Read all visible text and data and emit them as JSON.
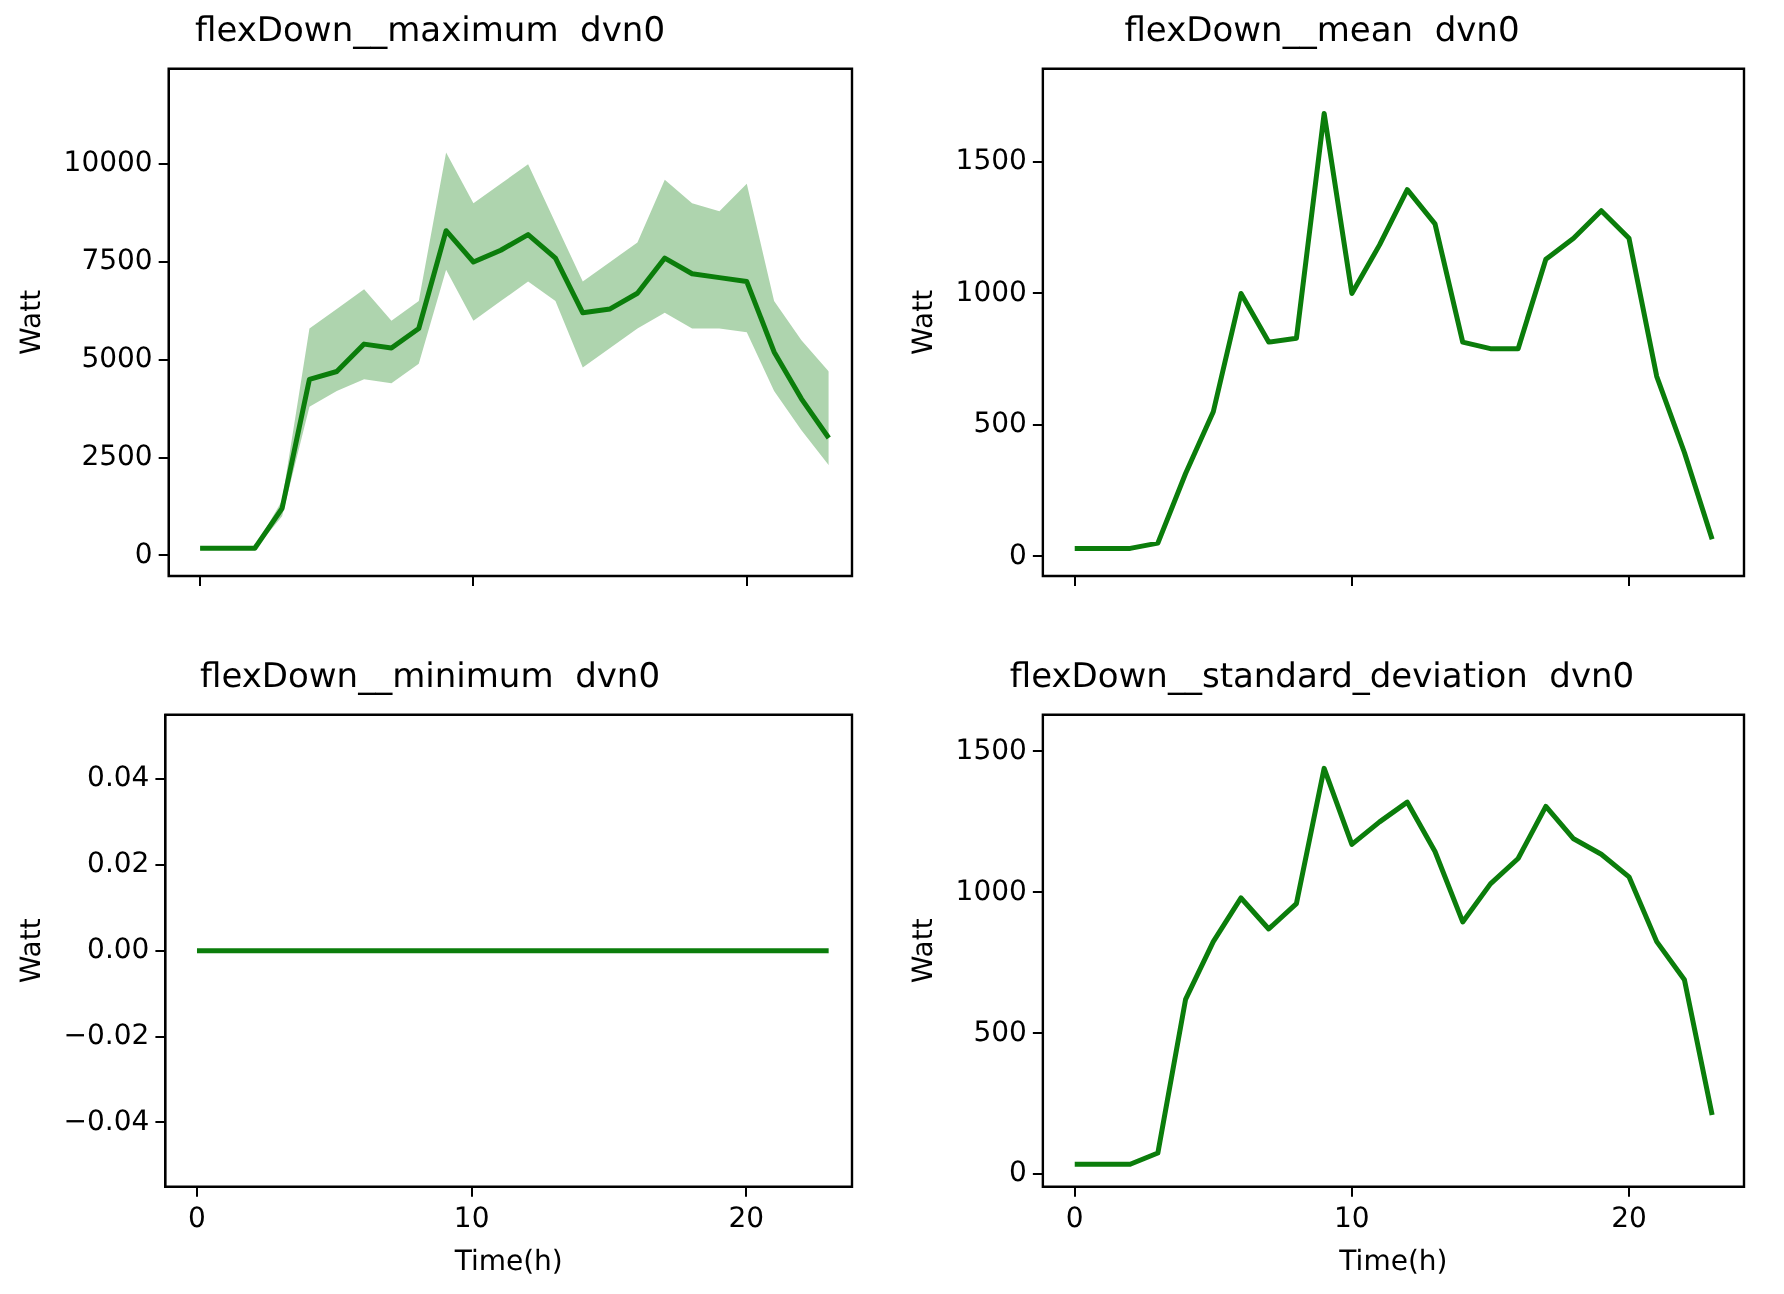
{
  "chart_data": [
    {
      "type": "line",
      "title": "flexDown__maximum  dvn0",
      "ylabel": "Watt",
      "x": [
        0,
        1,
        2,
        3,
        4,
        5,
        6,
        7,
        8,
        9,
        10,
        11,
        12,
        13,
        14,
        15,
        16,
        17,
        18,
        19,
        20,
        21,
        22,
        23
      ],
      "xlim": [
        -1.15,
        23.85
      ],
      "xticks": [
        0,
        10,
        20
      ],
      "ylim": [
        -530,
        12440
      ],
      "yticks": [
        0,
        2500,
        5000,
        7500,
        10000
      ],
      "tick_labels": "y",
      "grid": false,
      "series": [
        {
          "color": "#0b7d0b",
          "values": [
            180,
            180,
            180,
            1200,
            4500,
            4700,
            5400,
            5300,
            5800,
            8300,
            7500,
            7800,
            8200,
            7600,
            6200,
            6300,
            6700,
            7600,
            7200,
            7100,
            7000,
            5200,
            4000,
            3000
          ],
          "lower": [
            150,
            150,
            150,
            1000,
            3800,
            4200,
            4500,
            4400,
            4900,
            7300,
            6000,
            6500,
            7000,
            6500,
            4800,
            5300,
            5800,
            6200,
            5800,
            5800,
            5700,
            4200,
            3200,
            2300
          ],
          "upper": [
            200,
            200,
            200,
            1400,
            5800,
            6300,
            6800,
            6000,
            6500,
            10300,
            9000,
            9500,
            10000,
            8500,
            7000,
            7500,
            8000,
            9600,
            9000,
            8800,
            9500,
            6500,
            5500,
            4700
          ]
        }
      ]
    },
    {
      "type": "line",
      "title": "flexDown__mean  dvn0",
      "ylabel": "Watt",
      "x": [
        0,
        1,
        2,
        3,
        4,
        5,
        6,
        7,
        8,
        9,
        10,
        11,
        12,
        13,
        14,
        15,
        16,
        17,
        18,
        19,
        20,
        21,
        22,
        23
      ],
      "xlim": [
        -1.15,
        24.15
      ],
      "xticks": [
        0,
        10,
        20
      ],
      "ylim": [
        -75,
        1855
      ],
      "yticks": [
        0,
        500,
        1000,
        1500
      ],
      "tick_labels": "y",
      "grid": false,
      "series": [
        {
          "color": "#0b7d0b",
          "values": [
            30,
            30,
            30,
            50,
            315,
            550,
            1000,
            815,
            830,
            1685,
            1000,
            1185,
            1395,
            1265,
            815,
            790,
            790,
            1130,
            1210,
            1315,
            1210,
            685,
            395,
            65
          ]
        }
      ]
    },
    {
      "type": "line",
      "title": "flexDown__minimum  dvn0",
      "xlabel": "Time(h)",
      "ylabel": "Watt",
      "x": [
        0,
        1,
        2,
        3,
        4,
        5,
        6,
        7,
        8,
        9,
        10,
        11,
        12,
        13,
        14,
        15,
        16,
        17,
        18,
        19,
        20,
        21,
        22,
        23
      ],
      "xlim": [
        -1.15,
        23.85
      ],
      "xticks": [
        0,
        10,
        20
      ],
      "ylim": [
        -0.055,
        0.055
      ],
      "yticks": [
        {
          "value": -0.04,
          "label": "−0.04"
        },
        {
          "value": -0.02,
          "label": "−0.02"
        },
        {
          "value": 0,
          "label": "0.00"
        },
        {
          "value": 0.02,
          "label": "0.02"
        },
        {
          "value": 0.04,
          "label": "0.04"
        }
      ],
      "grid": false,
      "series": [
        {
          "color": "#0b7d0b",
          "values": [
            0,
            0,
            0,
            0,
            0,
            0,
            0,
            0,
            0,
            0,
            0,
            0,
            0,
            0,
            0,
            0,
            0,
            0,
            0,
            0,
            0,
            0,
            0,
            0
          ]
        }
      ]
    },
    {
      "type": "line",
      "title": "flexDown__standard_deviation  dvn0",
      "xlabel": "Time(h)",
      "ylabel": "Watt",
      "x": [
        0,
        1,
        2,
        3,
        4,
        5,
        6,
        7,
        8,
        9,
        10,
        11,
        12,
        13,
        14,
        15,
        16,
        17,
        18,
        19,
        20,
        21,
        22,
        23
      ],
      "xlim": [
        -1.15,
        24.15
      ],
      "xticks": [
        0,
        10,
        20
      ],
      "ylim": [
        -45,
        1630
      ],
      "yticks": [
        0,
        500,
        1000,
        1500
      ],
      "grid": false,
      "series": [
        {
          "color": "#0b7d0b",
          "values": [
            35,
            35,
            35,
            75,
            620,
            825,
            980,
            870,
            960,
            1440,
            1170,
            1250,
            1320,
            1145,
            895,
            1030,
            1120,
            1305,
            1190,
            1135,
            1055,
            825,
            690,
            210
          ]
        }
      ]
    }
  ]
}
